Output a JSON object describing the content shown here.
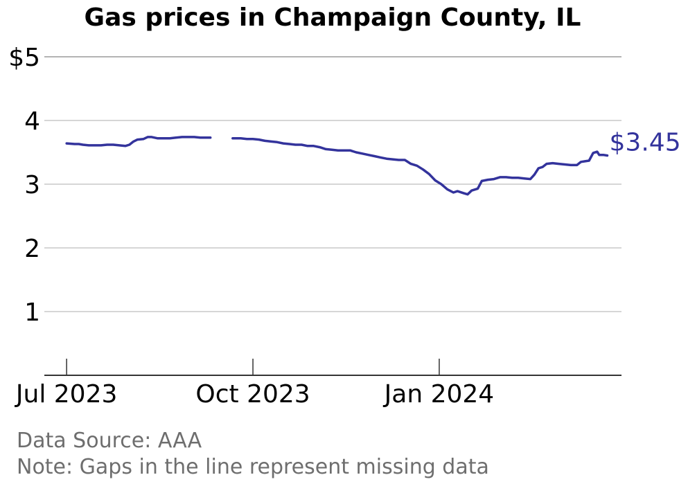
{
  "chart_data": {
    "type": "line",
    "title": "Gas prices in Champaign County, IL",
    "xlabel": "",
    "ylabel": "",
    "ylim": [
      0,
      5
    ],
    "y_ticks": [
      {
        "value": 1,
        "label": "1"
      },
      {
        "value": 2,
        "label": "2"
      },
      {
        "value": 3,
        "label": "3"
      },
      {
        "value": 4,
        "label": "4"
      },
      {
        "value": 5,
        "label": "$5"
      }
    ],
    "xlim": [
      "2023-06-20",
      "2024-03-31"
    ],
    "x_ticks": [
      {
        "date": "2023-07-01",
        "label": "Jul 2023"
      },
      {
        "date": "2023-10-01",
        "label": "Oct 2023"
      },
      {
        "date": "2024-01-01",
        "label": "Jan 2024"
      }
    ],
    "grid": "horizontal",
    "line_color": "#33339c",
    "end_label": "$3.45",
    "series": [
      {
        "segments": [
          [
            [
              "2023-07-01",
              3.64
            ],
            [
              "2023-07-05",
              3.63
            ],
            [
              "2023-07-07",
              3.63
            ],
            [
              "2023-07-09",
              3.62
            ],
            [
              "2023-07-12",
              3.61
            ],
            [
              "2023-07-15",
              3.61
            ],
            [
              "2023-07-18",
              3.61
            ],
            [
              "2023-07-21",
              3.62
            ],
            [
              "2023-07-24",
              3.62
            ],
            [
              "2023-07-27",
              3.61
            ],
            [
              "2023-07-30",
              3.6
            ],
            [
              "2023-08-01",
              3.62
            ],
            [
              "2023-08-03",
              3.67
            ],
            [
              "2023-08-05",
              3.7
            ],
            [
              "2023-08-08",
              3.71
            ],
            [
              "2023-08-10",
              3.74
            ],
            [
              "2023-08-12",
              3.74
            ],
            [
              "2023-08-15",
              3.72
            ],
            [
              "2023-08-18",
              3.72
            ],
            [
              "2023-08-21",
              3.72
            ],
            [
              "2023-08-24",
              3.73
            ],
            [
              "2023-08-27",
              3.74
            ],
            [
              "2023-08-30",
              3.74
            ],
            [
              "2023-09-02",
              3.74
            ],
            [
              "2023-09-05",
              3.73
            ],
            [
              "2023-09-08",
              3.73
            ],
            [
              "2023-09-10",
              3.73
            ]
          ],
          [
            [
              "2023-09-21",
              3.72
            ],
            [
              "2023-09-25",
              3.72
            ],
            [
              "2023-09-28",
              3.71
            ],
            [
              "2023-10-01",
              3.71
            ],
            [
              "2023-10-04",
              3.7
            ],
            [
              "2023-10-07",
              3.68
            ],
            [
              "2023-10-10",
              3.67
            ],
            [
              "2023-10-13",
              3.66
            ],
            [
              "2023-10-16",
              3.64
            ],
            [
              "2023-10-19",
              3.63
            ],
            [
              "2023-10-22",
              3.62
            ],
            [
              "2023-10-25",
              3.62
            ],
            [
              "2023-10-28",
              3.6
            ],
            [
              "2023-10-31",
              3.6
            ],
            [
              "2023-11-03",
              3.58
            ],
            [
              "2023-11-06",
              3.55
            ],
            [
              "2023-11-09",
              3.54
            ],
            [
              "2023-11-12",
              3.53
            ],
            [
              "2023-11-15",
              3.53
            ],
            [
              "2023-11-18",
              3.53
            ],
            [
              "2023-11-21",
              3.5
            ],
            [
              "2023-11-24",
              3.48
            ],
            [
              "2023-11-27",
              3.46
            ],
            [
              "2023-11-30",
              3.44
            ],
            [
              "2023-12-03",
              3.42
            ],
            [
              "2023-12-06",
              3.4
            ],
            [
              "2023-12-09",
              3.39
            ],
            [
              "2023-12-12",
              3.38
            ],
            [
              "2023-12-15",
              3.38
            ],
            [
              "2023-12-18",
              3.32
            ],
            [
              "2023-12-21",
              3.29
            ],
            [
              "2023-12-24",
              3.23
            ],
            [
              "2023-12-27",
              3.16
            ],
            [
              "2023-12-30",
              3.06
            ],
            [
              "2024-01-02",
              3.0
            ],
            [
              "2024-01-05",
              2.92
            ],
            [
              "2024-01-08",
              2.87
            ],
            [
              "2024-01-10",
              2.89
            ],
            [
              "2024-01-13",
              2.86
            ],
            [
              "2024-01-15",
              2.84
            ],
            [
              "2024-01-17",
              2.9
            ],
            [
              "2024-01-20",
              2.93
            ],
            [
              "2024-01-22",
              3.05
            ],
            [
              "2024-01-25",
              3.07
            ],
            [
              "2024-01-28",
              3.08
            ],
            [
              "2024-01-31",
              3.11
            ],
            [
              "2024-02-03",
              3.11
            ],
            [
              "2024-02-06",
              3.1
            ],
            [
              "2024-02-09",
              3.1
            ],
            [
              "2024-02-12",
              3.09
            ],
            [
              "2024-02-15",
              3.08
            ],
            [
              "2024-02-17",
              3.15
            ],
            [
              "2024-02-19",
              3.25
            ],
            [
              "2024-02-21",
              3.27
            ],
            [
              "2024-02-23",
              3.32
            ],
            [
              "2024-02-26",
              3.33
            ],
            [
              "2024-02-29",
              3.32
            ],
            [
              "2024-03-03",
              3.31
            ],
            [
              "2024-03-06",
              3.3
            ],
            [
              "2024-03-09",
              3.3
            ],
            [
              "2024-03-11",
              3.35
            ],
            [
              "2024-03-13",
              3.36
            ],
            [
              "2024-03-15",
              3.37
            ],
            [
              "2024-03-17",
              3.49
            ],
            [
              "2024-03-19",
              3.51
            ],
            [
              "2024-03-20",
              3.46
            ],
            [
              "2024-03-22",
              3.46
            ],
            [
              "2024-03-24",
              3.45
            ]
          ]
        ]
      }
    ]
  },
  "footer": {
    "source": "Data Source: AAA",
    "note": "Note: Gaps in the line represent missing data"
  }
}
